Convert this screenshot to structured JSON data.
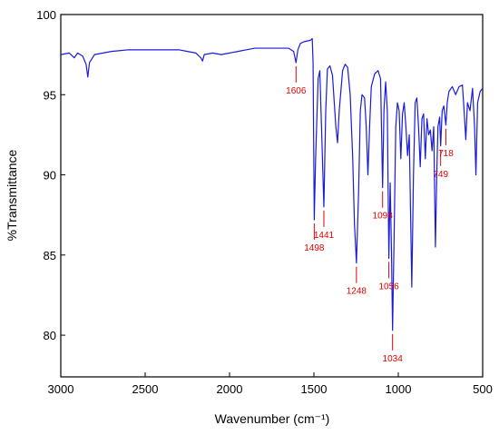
{
  "chart_data": {
    "type": "line",
    "xlabel": "Wavenumber (cm⁻¹)",
    "ylabel": "%Transmittance",
    "xlim": [
      3000,
      500
    ],
    "ylim": [
      77.4,
      100
    ],
    "xticks": [
      3000,
      2500,
      2000,
      1500,
      1000,
      500
    ],
    "yticks": [
      80,
      85,
      90,
      95,
      100
    ],
    "x": [
      3000,
      2950,
      2920,
      2900,
      2870,
      2850,
      2840,
      2830,
      2800,
      2750,
      2700,
      2600,
      2500,
      2400,
      2300,
      2250,
      2200,
      2170,
      2160,
      2150,
      2100,
      2050,
      2000,
      1950,
      1900,
      1850,
      1800,
      1750,
      1700,
      1650,
      1620,
      1606,
      1595,
      1580,
      1560,
      1520,
      1510,
      1505,
      1498,
      1490,
      1475,
      1465,
      1455,
      1441,
      1430,
      1420,
      1405,
      1390,
      1370,
      1360,
      1350,
      1330,
      1315,
      1300,
      1285,
      1270,
      1260,
      1248,
      1235,
      1225,
      1215,
      1200,
      1190,
      1180,
      1170,
      1160,
      1140,
      1120,
      1105,
      1093,
      1085,
      1075,
      1065,
      1056,
      1048,
      1040,
      1034,
      1025,
      1015,
      1005,
      995,
      985,
      975,
      965,
      955,
      945,
      935,
      920,
      910,
      900,
      890,
      880,
      870,
      860,
      850,
      840,
      830,
      820,
      810,
      800,
      790,
      780,
      772,
      765,
      755,
      749,
      740,
      730,
      718,
      710,
      700,
      680,
      660,
      640,
      620,
      610,
      600,
      590,
      575,
      560,
      548,
      540,
      530,
      515,
      500
    ],
    "series": [
      {
        "name": "spectrum",
        "color": "#1a1adb",
        "values": [
          97.5,
          97.6,
          97.3,
          97.6,
          97.4,
          96.9,
          96.1,
          97.0,
          97.5,
          97.6,
          97.7,
          97.8,
          97.8,
          97.8,
          97.8,
          97.7,
          97.6,
          97.3,
          97.1,
          97.5,
          97.6,
          97.5,
          97.6,
          97.7,
          97.8,
          97.9,
          97.9,
          97.9,
          97.9,
          97.9,
          97.7,
          97.0,
          97.8,
          98.2,
          98.3,
          98.4,
          98.5,
          97.0,
          87.2,
          91,
          96.0,
          96.5,
          93,
          88.0,
          94,
          96.6,
          96.8,
          96.2,
          93,
          92.0,
          94,
          96.5,
          96.9,
          96.7,
          95,
          91,
          87,
          84.5,
          89,
          94,
          95.0,
          94.8,
          93,
          90.0,
          93,
          95.5,
          96.3,
          96.5,
          96.0,
          89.2,
          94,
          95.8,
          94,
          84.8,
          89.5,
          85,
          80.3,
          86,
          93,
          94.5,
          94.0,
          91,
          93.8,
          94.5,
          93,
          91.2,
          92.5,
          83.0,
          90,
          94.5,
          94.8,
          93,
          90.5,
          93.5,
          93.8,
          91,
          93.5,
          92.5,
          92.8,
          91.5,
          93,
          85.5,
          90,
          93,
          93.6,
          91.8,
          94,
          94.3,
          93.1,
          94.5,
          95.2,
          95.5,
          95.0,
          95.5,
          95.6,
          94,
          92.2,
          94.5,
          94.0,
          95.4,
          93,
          90,
          94.5,
          95.2,
          95.4
        ]
      }
    ],
    "annotations": [
      1606,
      1498,
      1441,
      1248,
      1093,
      1056,
      1034,
      749,
      718
    ],
    "annotation_color": "#e00000"
  }
}
